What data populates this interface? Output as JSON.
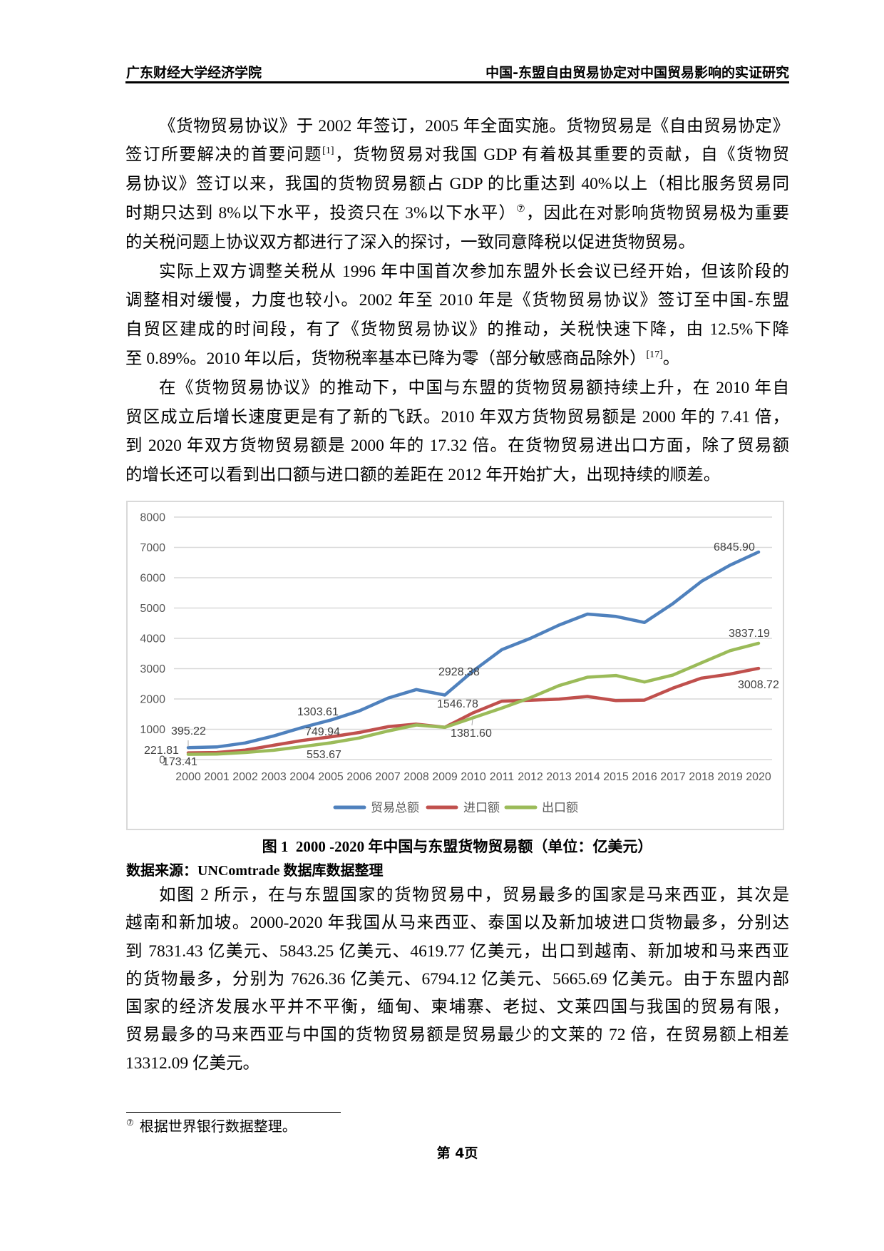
{
  "header": {
    "left": "广东财经大学经济学院",
    "right": "中国-东盟自由贸易协定对中国贸易影响的实证研究"
  },
  "body": {
    "paragraph_1": [
      "《货物贸易协议》于 2002 年签订，2005 年全面实施。货物贸易是《自由贸易协定》",
      {
        "pre": "签订所要解决的首要问题",
        "sup": "[1]",
        "post": "，货物贸易对我国 GDP 有着极其重要的贡献，自《货物贸"
      },
      "易协议》签订以来，我国的货物贸易额占 GDP 的比重达到 40%以上（相比服务贸易同",
      {
        "pre": "时期只达到 8%以下水平，投资只在 3%以下水平）",
        "sup": "⑦",
        "post": "，因此在对影响货物贸易极为重要"
      },
      "的关税问题上协议双方都进行了深入的探讨，一致同意降税以促进货物贸易。"
    ],
    "paragraph_2": [
      "实际上双方调整关税从 1996 年中国首次参加东盟外长会议已经开始，但该阶段的",
      "调整相对缓慢，力度也较小。2002 年至 2010 年是《货物贸易协议》签订至中国-东盟",
      "自贸区建成的时间段，有了《货物贸易协议》的推动，关税快速下降，由 12.5%下降",
      {
        "pre": "至 0.89%。2010 年以后，货物税率基本已降为零（部分敏感商品除外）",
        "sup": "[17]",
        "post": "。"
      }
    ],
    "paragraph_3": [
      "在《货物贸易协议》的推动下，中国与东盟的货物贸易额持续上升，在 2010 年自",
      "贸区成立后增长速度更是有了新的飞跃。2010 年双方货物贸易额是 2000 年的 7.41 倍，",
      "到 2020 年双方货物贸易额是 2000 年的 17.32 倍。在货物贸易进出口方面，除了贸易额",
      "的增长还可以看到出口额与进口额的差距在 2012 年开始扩大，出现持续的顺差。"
    ],
    "paragraph_4": [
      "如图 2 所示，在与东盟国家的货物贸易中，贸易最多的国家是马来西亚，其次是",
      "越南和新加坡。2000-2020 年我国从马来西亚、泰国以及新加坡进口货物最多，分别达",
      "到 7831.43 亿美元、5843.25 亿美元、4619.77 亿美元，出口到越南、新加坡和马来西亚",
      "的货物最多，分别为 7626.36 亿美元、6794.12 亿美元、5665.69 亿美元。由于东盟内部",
      "国家的经济发展水平并不平衡，缅甸、柬埔寨、老挝、文莱四国与我国的贸易有限，",
      "贸易最多的马来西亚与中国的货物贸易额是贸易最少的文莱的 72 倍，在贸易额上相差",
      "13312.09 亿美元。"
    ]
  },
  "figure": {
    "source": "数据来源：UNComtrade 数据库数据整理"
  },
  "footnote": {
    "marker": "⑦",
    "text": "根据世界银行数据整理。"
  },
  "page_number": "第 4页",
  "chart_data": {
    "type": "line",
    "title": "图 1  2000 -2020 年中国与东盟货物贸易额（单位：亿美元）",
    "xlabel": "",
    "ylabel": "",
    "unit": "亿美元",
    "ylim": [
      0,
      8000
    ],
    "yticks": [
      0,
      1000,
      2000,
      3000,
      4000,
      5000,
      6000,
      7000,
      8000
    ],
    "grid": true,
    "legend_position": "bottom",
    "categories": [
      "2000",
      "2001",
      "2002",
      "2003",
      "2004",
      "2005",
      "2006",
      "2007",
      "2008",
      "2009",
      "2010",
      "2011",
      "2012",
      "2013",
      "2014",
      "2015",
      "2016",
      "2017",
      "2018",
      "2019",
      "2020"
    ],
    "series": [
      {
        "key": "total",
        "name": "贸易总额",
        "color": "#4F81BD",
        "values": [
          395.22,
          416,
          548,
          782,
          1059,
          1303.61,
          1608,
          2025,
          2311,
          2130,
          2928.38,
          3629,
          4001,
          4436,
          4801,
          4722,
          4522,
          5148,
          5879,
          6415,
          6845.9
        ]
      },
      {
        "key": "import",
        "name": "进口额",
        "color": "#C0504D",
        "values": [
          221.81,
          232,
          312,
          473,
          630,
          749.94,
          895,
          1084,
          1170,
          1067,
          1546.78,
          1928,
          1958,
          1995,
          2083,
          1947,
          1962,
          2357,
          2686,
          2820,
          3008.72
        ]
      },
      {
        "key": "export",
        "name": "出口额",
        "color": "#9BBB59",
        "values": [
          173.41,
          184,
          236,
          309,
          429,
          553.67,
          713,
          942,
          1141,
          1063,
          1381.6,
          1701,
          2043,
          2441,
          2718,
          2775,
          2560,
          2791,
          3192,
          3594,
          3837.19
        ]
      }
    ],
    "data_labels": [
      {
        "series": "贸易总额",
        "x": "2000",
        "text": "395.22"
      },
      {
        "series": "进口额",
        "x": "2000",
        "text": "221.81"
      },
      {
        "series": "出口额",
        "x": "2000",
        "text": "173.41"
      },
      {
        "series": "贸易总额",
        "x": "2005",
        "text": "1303.61"
      },
      {
        "series": "进口额",
        "x": "2005",
        "text": "749.94"
      },
      {
        "series": "出口额",
        "x": "2005",
        "text": "553.67"
      },
      {
        "series": "贸易总额",
        "x": "2010",
        "text": "2928.38"
      },
      {
        "series": "进口额",
        "x": "2010",
        "text": "1546.78"
      },
      {
        "series": "出口额",
        "x": "2010",
        "text": "1381.60"
      },
      {
        "series": "贸易总额",
        "x": "2020",
        "text": "6845.90"
      },
      {
        "series": "出口额",
        "x": "2020",
        "text": "3837.19"
      },
      {
        "series": "进口额",
        "x": "2020",
        "text": "3008.72"
      }
    ]
  }
}
